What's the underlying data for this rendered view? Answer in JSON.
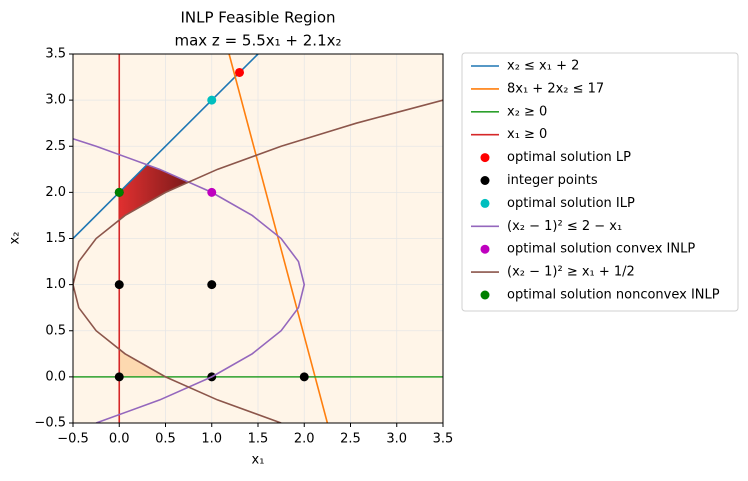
{
  "chart_data": {
    "type": "line",
    "title": "INLP Feasible Region",
    "subtitle": "max z = 5.5x₁ + 2.1x₂",
    "x_label": "x₁",
    "y_label": "x₂",
    "xlim": [
      -0.5,
      3.5
    ],
    "ylim": [
      -0.5,
      3.5
    ],
    "xticks": [
      {
        "value": -0.5,
        "label": "−0.5"
      },
      {
        "value": 0,
        "label": "0.0"
      },
      {
        "value": 0.5,
        "label": "0.5"
      },
      {
        "value": 1,
        "label": "1.0"
      },
      {
        "value": 1.5,
        "label": "1.5"
      },
      {
        "value": 2,
        "label": "2.0"
      },
      {
        "value": 2.5,
        "label": "2.5"
      },
      {
        "value": 3,
        "label": "3.0"
      },
      {
        "value": 3.5,
        "label": "3.5"
      }
    ],
    "yticks": [
      {
        "value": -0.5,
        "label": "−0.5"
      },
      {
        "value": 0,
        "label": "0.0"
      },
      {
        "value": 0.5,
        "label": "0.5"
      },
      {
        "value": 1,
        "label": "1.0"
      },
      {
        "value": 1.5,
        "label": "1.5"
      },
      {
        "value": 2,
        "label": "2.0"
      },
      {
        "value": 2.5,
        "label": "2.5"
      },
      {
        "value": 3,
        "label": "3.0"
      },
      {
        "value": 3.5,
        "label": "3.5"
      }
    ],
    "grid": true,
    "plot_background": "#fff5e8",
    "legend": "outside-right",
    "regions": [
      {
        "color": "#fdd9b0",
        "x": [
          0,
          0.5,
          0.25,
          0
        ],
        "y": [
          0,
          0,
          0.134,
          0.293
        ]
      },
      {
        "color": "#b22222",
        "x": [
          0,
          0,
          0.3028,
          0.5,
          0.75,
          0.5,
          0.25
        ],
        "y": [
          1.707,
          2,
          2.3028,
          2.2247,
          2.118,
          2,
          1.866
        ]
      }
    ],
    "series": [
      {
        "name": "x₂ ≤ x₁ + 2",
        "type": "line",
        "color": "#1f77b4",
        "x": [
          -0.5,
          1.5
        ],
        "y": [
          1.5,
          3.5
        ]
      },
      {
        "name": "8x₁ + 2x₂ ≤ 17",
        "type": "line",
        "color": "#ff7f0e",
        "x": [
          1.1875,
          2.25
        ],
        "y": [
          3.5,
          -0.5
        ]
      },
      {
        "name": "x₂ ≥ 0",
        "type": "line",
        "color": "#2ca02c",
        "x": [
          -0.5,
          3.5
        ],
        "y": [
          0,
          0
        ]
      },
      {
        "name": "x₁ ≥ 0",
        "type": "line",
        "color": "#d62728",
        "x": [
          0,
          0
        ],
        "y": [
          -0.5,
          3.5
        ]
      },
      {
        "name": "optimal solution LP",
        "type": "scatter",
        "color": "#ff0000",
        "x": [
          1.3
        ],
        "y": [
          3.3
        ]
      },
      {
        "name": "integer points",
        "type": "scatter",
        "color": "#000000",
        "x": [
          0,
          1,
          2,
          0,
          1,
          0
        ],
        "y": [
          0,
          0,
          0,
          1,
          1,
          2
        ]
      },
      {
        "name": "optimal solution ILP",
        "type": "scatter",
        "color": "#00bfbf",
        "x": [
          1
        ],
        "y": [
          3
        ]
      },
      {
        "name": "(x₂ − 1)² ≤ 2 − x₁",
        "type": "line",
        "color": "#9467bd",
        "x": [
          -0.25,
          0.4375,
          1,
          1.4375,
          1.75,
          1.9375,
          2,
          1.9375,
          1.75,
          1.4375,
          1,
          0.4375,
          -0.25,
          -0.4964
        ],
        "y": [
          -0.5,
          -0.25,
          0,
          0.25,
          0.5,
          0.75,
          1,
          1.25,
          1.5,
          1.75,
          2,
          2.25,
          2.5,
          2.58
        ]
      },
      {
        "name": "optimal solution convex INLP",
        "type": "scatter",
        "color": "#bf00bf",
        "x": [
          1
        ],
        "y": [
          2
        ]
      },
      {
        "name": "(x₂ − 1)² ≥ x₁ + 1/2",
        "type": "line",
        "color": "#8c564b",
        "x": [
          1.75,
          1.0625,
          0.5,
          0.0625,
          -0.25,
          -0.4375,
          -0.5,
          -0.4375,
          -0.25,
          0.0625,
          0.5,
          1.0625,
          1.75,
          2.5625,
          3.5
        ],
        "y": [
          -0.5,
          -0.25,
          0,
          0.25,
          0.5,
          0.75,
          1,
          1.25,
          1.5,
          1.75,
          2,
          2.25,
          2.5,
          2.75,
          3
        ]
      },
      {
        "name": "optimal solution nonconvex INLP",
        "type": "scatter",
        "color": "#008000",
        "x": [
          0
        ],
        "y": [
          2
        ]
      }
    ]
  }
}
